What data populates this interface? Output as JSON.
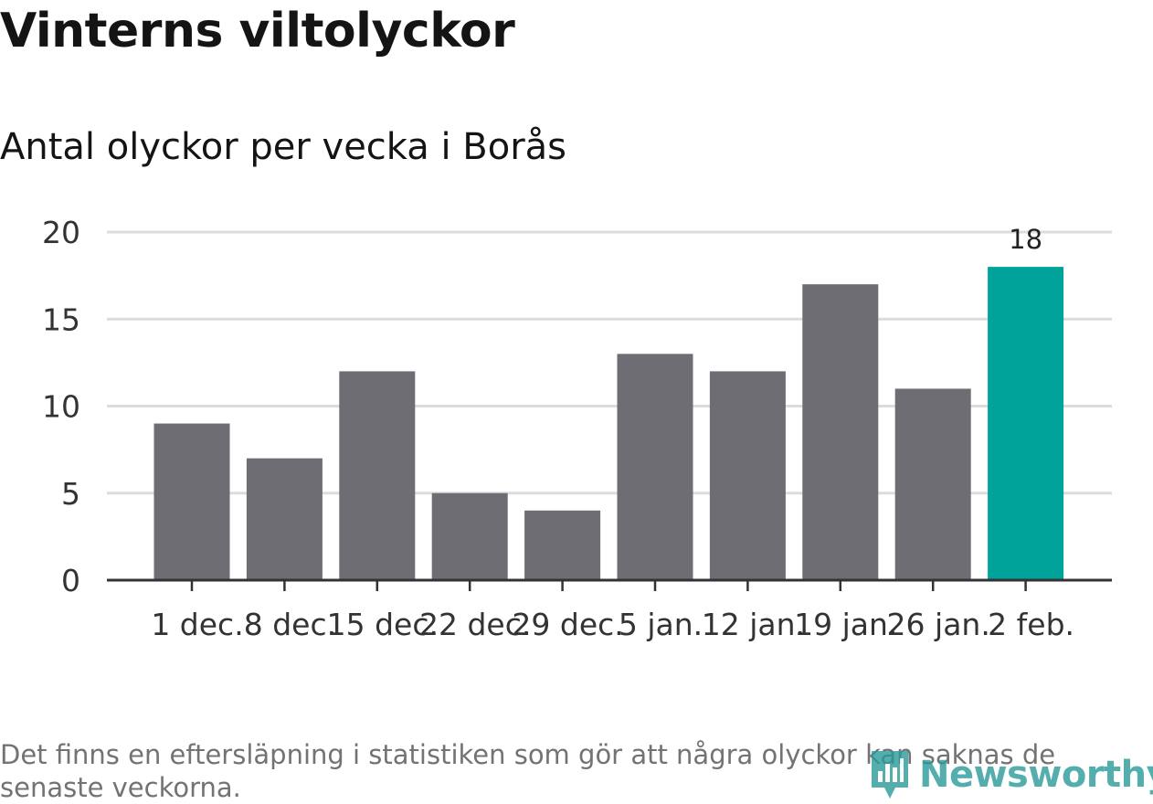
{
  "title": "Vinterns viltolyckor",
  "subtitle": "Antal olyckor per vecka i Borås",
  "note": "Det finns en eftersläpning i statistiken som gör att några olyckor kan saknas de senaste veckorna.",
  "logo": {
    "text": "Newsworthy",
    "icon": "bar-chart-pin-icon"
  },
  "colors": {
    "bar": "#6e6d73",
    "highlight": "#00a39a",
    "grid": "#dcdcdc",
    "axis": "#333333"
  },
  "chart_data": {
    "type": "bar",
    "categories": [
      "1 dec.",
      "8 dec.",
      "15 dec.",
      "22 dec.",
      "29 dec.",
      "5 jan.",
      "12 jan.",
      "19 jan.",
      "26 jan.",
      "2 feb."
    ],
    "values": [
      9,
      7,
      12,
      5,
      4,
      13,
      12,
      17,
      11,
      18
    ],
    "highlight_index": 9,
    "data_labels": [
      {
        "index": 9,
        "text": "18"
      }
    ],
    "yticks": [
      0,
      5,
      10,
      15,
      20
    ],
    "ylim": [
      0,
      20
    ],
    "grid": true,
    "xlabel": "",
    "ylabel": ""
  }
}
